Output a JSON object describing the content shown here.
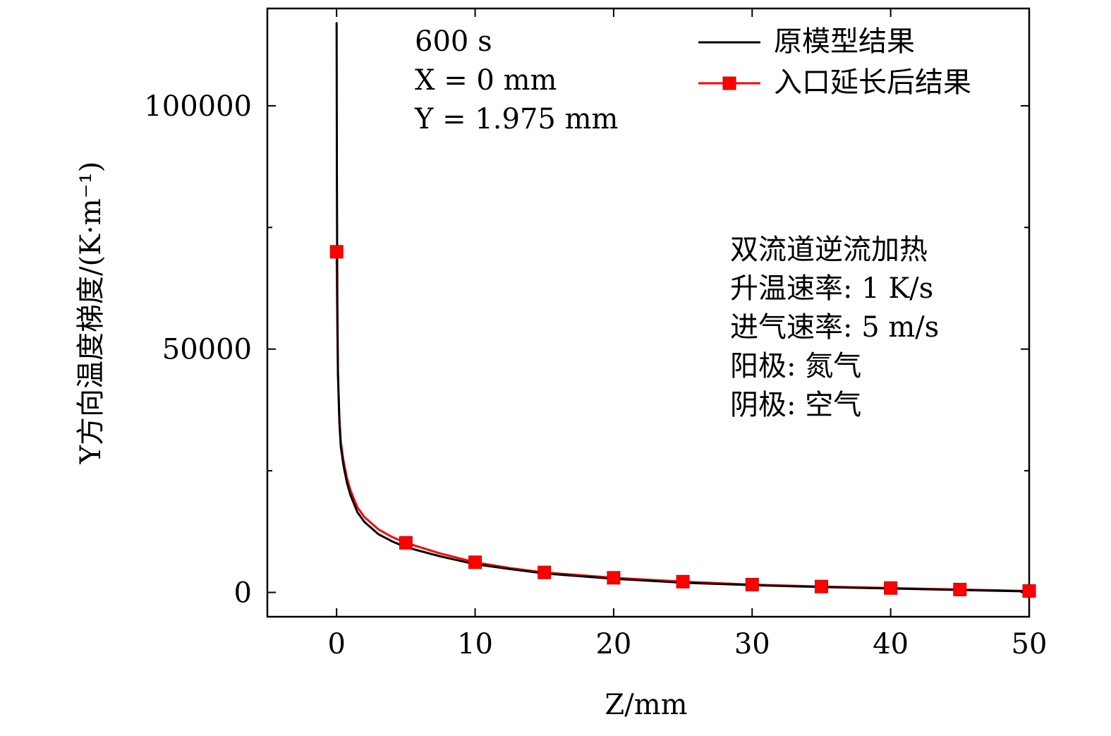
{
  "chart_data": {
    "type": "line",
    "xlabel": "Z/mm",
    "ylabel": "Y方向温度梯度/(K·m⁻¹)",
    "xlim": [
      -5,
      50
    ],
    "ylim": [
      -5000,
      120000
    ],
    "xticks": [
      0,
      10,
      20,
      30,
      40,
      50
    ],
    "xtick_labels": [
      "0",
      "10",
      "20",
      "30",
      "40",
      "50"
    ],
    "yticks": [
      0,
      50000,
      100000
    ],
    "ytick_labels": [
      "0",
      "50000",
      "100000"
    ],
    "y_minor_ticks": [
      25000,
      75000
    ],
    "grid": false,
    "legend_position": "top-right",
    "annotation_top": [
      "600 s",
      "X = 0 mm",
      "Y = 1.975 mm"
    ],
    "annotation_right": [
      "双流道逆流加热",
      "升温速率: 1 K/s",
      "进气速率: 5 m/s",
      "阳极: 氮气",
      "阴极: 空气"
    ],
    "series": [
      {
        "name": "原模型结果",
        "color": "#000000",
        "marker": "none",
        "x": [
          0,
          0.02,
          0.05,
          0.1,
          0.2,
          0.3,
          0.5,
          0.75,
          1,
          1.5,
          2,
          3,
          4,
          5,
          7.5,
          10,
          12.5,
          15,
          20,
          25,
          30,
          35,
          40,
          45,
          50
        ],
        "y": [
          117000,
          85000,
          60000,
          45000,
          35000,
          30000,
          26000,
          22500,
          20000,
          16500,
          14500,
          12000,
          10500,
          9300,
          7400,
          5800,
          4800,
          3900,
          2800,
          2000,
          1500,
          1100,
          800,
          500,
          200
        ]
      },
      {
        "name": "入口延长后结果",
        "color": "#ff0000",
        "marker": "square",
        "x": [
          0,
          0.05,
          0.1,
          0.2,
          0.3,
          0.5,
          0.75,
          1,
          1.5,
          2,
          3,
          4,
          5,
          7.5,
          10,
          12.5,
          15,
          20,
          25,
          30,
          35,
          40,
          45,
          50
        ],
        "y": [
          70000,
          55000,
          45000,
          36000,
          31000,
          27000,
          23500,
          21000,
          17500,
          15500,
          13000,
          11400,
          10200,
          8000,
          6200,
          5000,
          4100,
          3000,
          2200,
          1600,
          1200,
          900,
          600,
          300
        ],
        "marker_x": [
          0,
          5,
          10,
          15,
          20,
          25,
          30,
          35,
          40,
          45,
          50
        ],
        "marker_y": [
          70000,
          10200,
          6200,
          4100,
          3000,
          2200,
          1600,
          1200,
          900,
          600,
          300
        ]
      }
    ]
  }
}
